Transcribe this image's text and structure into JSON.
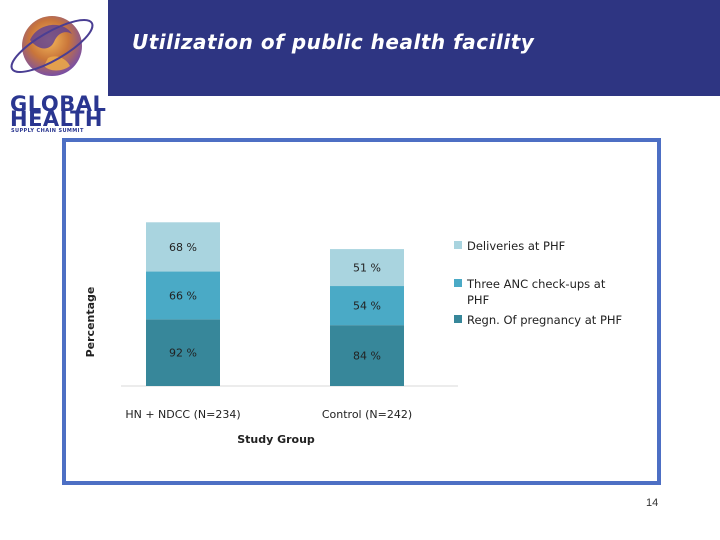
{
  "header": {
    "title": "Utilization of public health facility",
    "bar_color": "#2e3582"
  },
  "logo": {
    "line1": "GLOBAL",
    "line2": "HEALTH",
    "tagline": "SUPPLY CHAIN SUMMIT"
  },
  "page_number": "14",
  "chart_data": {
    "type": "bar",
    "stacked": true,
    "title": "",
    "xlabel": "Study Group",
    "ylabel": "Percentage",
    "categories": [
      "HN + NDCC (N=234)",
      "Control (N=242)"
    ],
    "series": [
      {
        "name": "Regn. Of pregnancy at PHF",
        "color": "#37879a",
        "values": [
          92,
          84
        ],
        "labels": [
          "92 %",
          "84 %"
        ]
      },
      {
        "name": "Three ANC check-ups at PHF",
        "color": "#4aaac6",
        "values": [
          66,
          54
        ],
        "labels": [
          "66  %",
          "54 %"
        ]
      },
      {
        "name": "Deliveries at PHF",
        "color": "#a9d4df",
        "values": [
          68,
          51
        ],
        "labels": [
          "68 %",
          "51 %"
        ]
      }
    ],
    "legend_position": "right",
    "legend_order": [
      "Deliveries at PHF",
      "Three ANC check-ups at PHF",
      "Regn. Of pregnancy at PHF"
    ],
    "legend_lines": [
      [
        "Deliveries at PHF"
      ],
      [
        "Three ANC check-ups at",
        "PHF"
      ],
      [
        "Regn. Of pregnancy at PHF"
      ]
    ],
    "grid": false
  }
}
